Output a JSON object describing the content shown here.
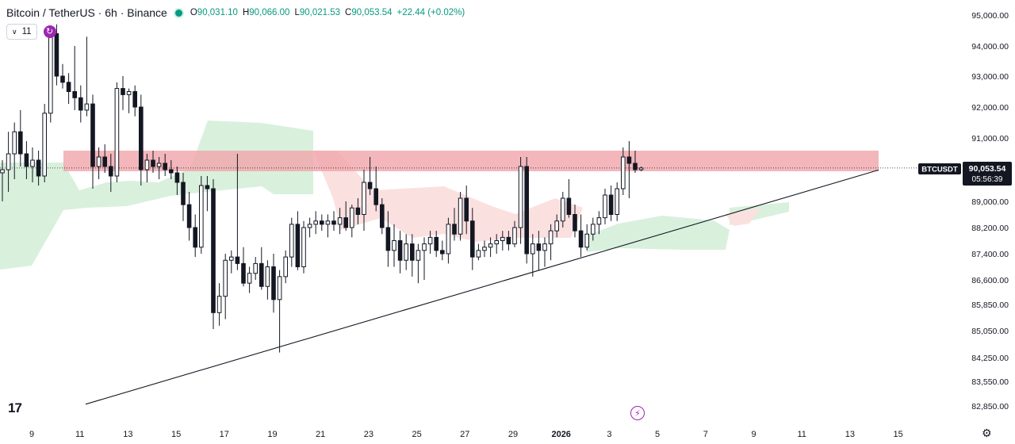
{
  "header": {
    "title": "Bitcoin / TetherUS · 6h · Binance",
    "ohlc": {
      "o_label": "O",
      "o": "90,031.10",
      "h_label": "H",
      "h": "90,066.00",
      "l_label": "L",
      "l": "90,021.53",
      "c_label": "C",
      "c": "90,053.54",
      "change": "+22.44 (+0.02%)"
    }
  },
  "indicator_toggle": {
    "count": "11"
  },
  "price_tag": {
    "symbol": "BTCUSDT",
    "price": "90,053.54",
    "countdown": "05:56:39"
  },
  "icons": {
    "logo": "tradingview-logo",
    "bolt": "lightning-icon",
    "gear": "settings-gear-icon",
    "sync": "sync-icon"
  },
  "logo_text": "17",
  "colors": {
    "up": "#089981",
    "down": "#f23645",
    "candle_body_up": "#ffffff",
    "candle_body_down": "#131722",
    "resistance_zone": "#f0a5aa",
    "cloud_green": "#d9f0dd",
    "cloud_red": "#fbe0e0"
  },
  "chart_data": {
    "type": "candlestick",
    "x_axis": {
      "labels": [
        "9",
        "11",
        "13",
        "15",
        "17",
        "19",
        "21",
        "23",
        "25",
        "27",
        "29",
        "2026",
        "3",
        "5",
        "7",
        "9",
        "11",
        "13",
        "15"
      ]
    },
    "y_axis": {
      "labels": [
        "95,000.00",
        "94,000.00",
        "93,000.00",
        "92,000.00",
        "91,000.00",
        "89,000.00",
        "88,200.00",
        "87,400.00",
        "86,600.00",
        "85,850.00",
        "85,050.00",
        "84,250.00",
        "83,550.00",
        "82,850.00"
      ],
      "range": [
        82700,
        95200
      ]
    },
    "resistance_zone": {
      "from": 89950,
      "to": 90600
    },
    "trendline": {
      "start": {
        "x_label": "11",
        "price": 82900
      },
      "end": {
        "x_label": "13",
        "price": 89990
      }
    },
    "last_price": 90053.54,
    "candles": [
      [
        89900,
        90300,
        89000,
        90000
      ],
      [
        90000,
        91200,
        89300,
        90500
      ],
      [
        90500,
        91500,
        89700,
        91200
      ],
      [
        91200,
        91900,
        90100,
        90500
      ],
      [
        90500,
        90900,
        89700,
        90100
      ],
      [
        90100,
        90700,
        89600,
        90300
      ],
      [
        90300,
        90600,
        89500,
        89800
      ],
      [
        89800,
        92100,
        89600,
        91800
      ],
      [
        91800,
        94500,
        91500,
        94400
      ],
      [
        94400,
        94700,
        92700,
        93000
      ],
      [
        93000,
        93400,
        92600,
        92800
      ],
      [
        92800,
        93100,
        92100,
        92500
      ],
      [
        92500,
        94000,
        91900,
        92300
      ],
      [
        92300,
        92700,
        91500,
        91900
      ],
      [
        91900,
        94300,
        91700,
        92100
      ],
      [
        92100,
        92400,
        89400,
        90100
      ],
      [
        90100,
        90700,
        89700,
        90400
      ],
      [
        90400,
        90800,
        89900,
        90100
      ],
      [
        90100,
        90500,
        89300,
        89800
      ],
      [
        89800,
        92800,
        89600,
        92600
      ],
      [
        92600,
        93000,
        91900,
        92400
      ],
      [
        92400,
        92600,
        91800,
        92500
      ],
      [
        92500,
        92700,
        91700,
        92000
      ],
      [
        92000,
        92400,
        89500,
        90000
      ],
      [
        90000,
        90500,
        89600,
        90300
      ],
      [
        90300,
        90600,
        89900,
        90100
      ],
      [
        90100,
        90400,
        89700,
        90200
      ],
      [
        90200,
        90500,
        89800,
        90000
      ],
      [
        90000,
        90300,
        89700,
        89900
      ],
      [
        89900,
        90100,
        89200,
        89600
      ],
      [
        89600,
        89900,
        88400,
        88900
      ],
      [
        88900,
        89300,
        87800,
        88200
      ],
      [
        88200,
        88600,
        87300,
        87600
      ],
      [
        87600,
        89800,
        87400,
        89500
      ],
      [
        89500,
        89800,
        88700,
        89400
      ],
      [
        89400,
        89700,
        85100,
        85600
      ],
      [
        85600,
        86500,
        85200,
        86100
      ],
      [
        86100,
        87400,
        85400,
        87200
      ],
      [
        87200,
        87500,
        86800,
        87300
      ],
      [
        87300,
        90500,
        86900,
        87100
      ],
      [
        87100,
        87600,
        86400,
        86500
      ],
      [
        86500,
        87000,
        86200,
        86800
      ],
      [
        86800,
        87300,
        86600,
        87100
      ],
      [
        87100,
        87600,
        86300,
        86400
      ],
      [
        86400,
        87200,
        86000,
        87000
      ],
      [
        87000,
        87400,
        85600,
        86000
      ],
      [
        86000,
        86900,
        84400,
        86700
      ],
      [
        86700,
        87500,
        86500,
        87300
      ],
      [
        87300,
        88500,
        87000,
        88300
      ],
      [
        88300,
        88700,
        86900,
        87000
      ],
      [
        87000,
        88400,
        86800,
        88200
      ],
      [
        88200,
        88500,
        87900,
        88300
      ],
      [
        88300,
        88700,
        88000,
        88400
      ],
      [
        88400,
        88600,
        88100,
        88300
      ],
      [
        88300,
        88600,
        87900,
        88400
      ],
      [
        88400,
        88700,
        88100,
        88300
      ],
      [
        88300,
        88800,
        88000,
        88500
      ],
      [
        88500,
        89000,
        88100,
        88200
      ],
      [
        88200,
        88900,
        87900,
        88800
      ],
      [
        88800,
        89100,
        88300,
        88600
      ],
      [
        88600,
        90000,
        88100,
        89600
      ],
      [
        89600,
        90400,
        89200,
        89400
      ],
      [
        89400,
        90100,
        88700,
        88900
      ],
      [
        88900,
        89100,
        88000,
        88200
      ],
      [
        88200,
        88700,
        87000,
        87500
      ],
      [
        87500,
        88300,
        87000,
        87800
      ],
      [
        87800,
        88100,
        86800,
        87200
      ],
      [
        87200,
        88000,
        86900,
        87700
      ],
      [
        87700,
        88000,
        86700,
        87200
      ],
      [
        87200,
        87700,
        86500,
        87500
      ],
      [
        87500,
        87900,
        86600,
        87700
      ],
      [
        87700,
        88100,
        87400,
        87900
      ],
      [
        87900,
        88100,
        87300,
        87500
      ],
      [
        87500,
        87800,
        87200,
        87400
      ],
      [
        87400,
        88500,
        87100,
        88300
      ],
      [
        88300,
        88800,
        87800,
        88000
      ],
      [
        88000,
        89300,
        87800,
        89100
      ],
      [
        89100,
        89500,
        88000,
        88400
      ],
      [
        88400,
        88800,
        86900,
        87300
      ],
      [
        87300,
        87700,
        87200,
        87500
      ],
      [
        87500,
        87800,
        87300,
        87600
      ],
      [
        87600,
        87900,
        87300,
        87700
      ],
      [
        87700,
        88000,
        87400,
        87800
      ],
      [
        87800,
        88100,
        87500,
        87900
      ],
      [
        87900,
        88100,
        87500,
        87700
      ],
      [
        87700,
        88400,
        87600,
        88200
      ],
      [
        88200,
        90400,
        87700,
        90100
      ],
      [
        90100,
        90400,
        87100,
        87400
      ],
      [
        87400,
        88000,
        86700,
        87700
      ],
      [
        87700,
        88100,
        86900,
        87500
      ],
      [
        87500,
        87900,
        87000,
        87700
      ],
      [
        87700,
        88300,
        87200,
        88100
      ],
      [
        88100,
        88600,
        87900,
        88400
      ],
      [
        88400,
        89300,
        88200,
        89100
      ],
      [
        89100,
        89700,
        88500,
        88600
      ],
      [
        88600,
        88900,
        87900,
        88100
      ],
      [
        88100,
        88600,
        87300,
        87600
      ],
      [
        87600,
        88300,
        87500,
        88000
      ],
      [
        88000,
        88500,
        87800,
        88300
      ],
      [
        88300,
        88700,
        88000,
        88500
      ],
      [
        88500,
        89400,
        88300,
        89200
      ],
      [
        89200,
        89500,
        88400,
        88600
      ],
      [
        88600,
        89600,
        88400,
        89400
      ],
      [
        89400,
        90700,
        89200,
        90400
      ],
      [
        90400,
        90900,
        89100,
        90200
      ],
      [
        90200,
        90600,
        89900,
        90000
      ],
      [
        90000,
        90100,
        89950,
        90053.54
      ]
    ]
  }
}
